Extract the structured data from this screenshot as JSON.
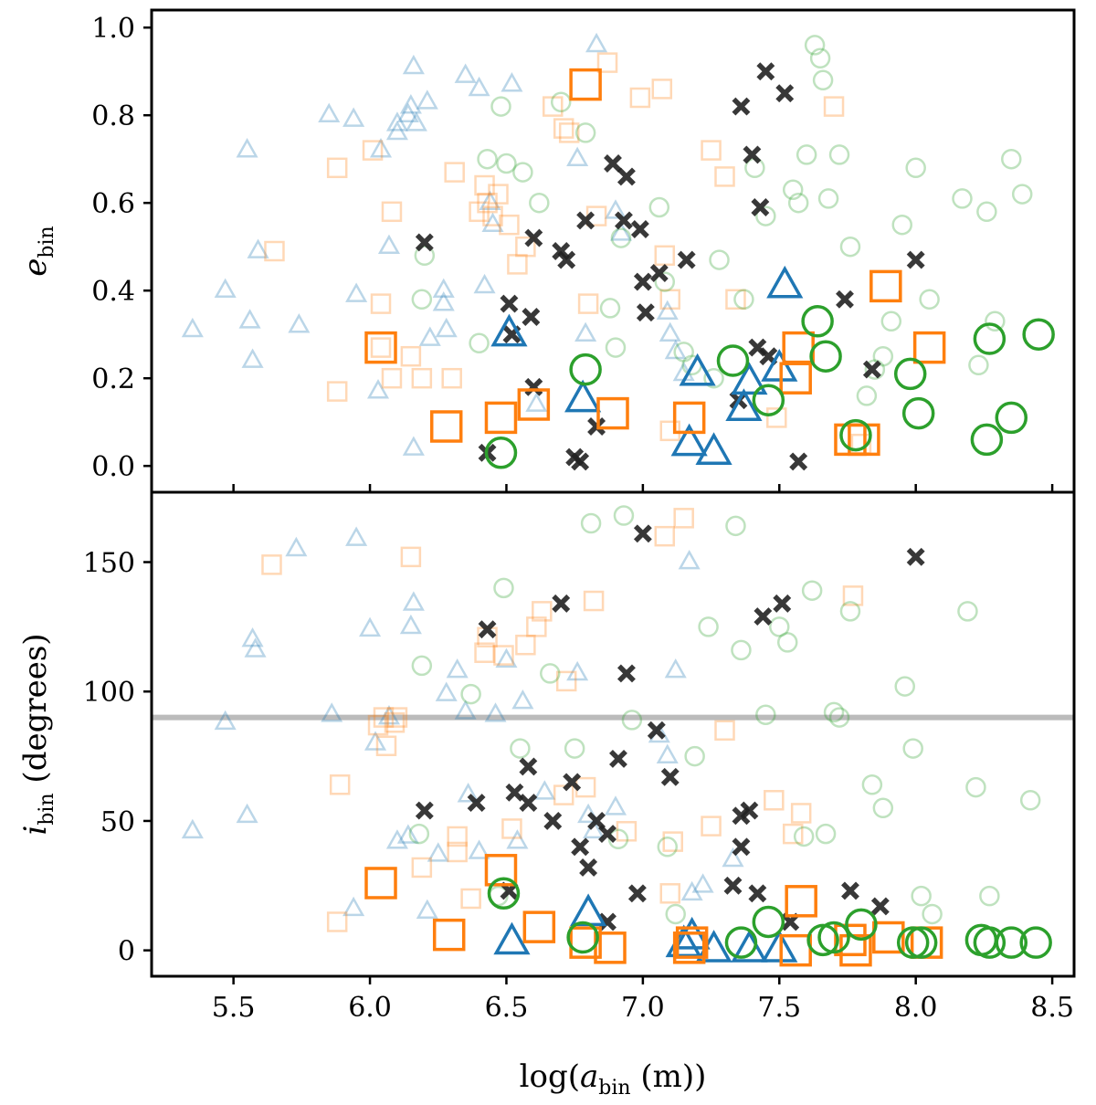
{
  "chart_data": [
    {
      "type": "scatter",
      "panel": "top",
      "xlim": [
        5.2,
        8.58
      ],
      "ylim": [
        -0.06,
        1.04
      ],
      "ylabel_main": "e",
      "ylabel_sub": "bin",
      "yticks": [
        "0.0",
        "0.2",
        "0.4",
        "0.6",
        "0.8",
        "1.0"
      ],
      "ytick_values": [
        0,
        0.2,
        0.4,
        0.6,
        0.8,
        1.0
      ],
      "grid": false,
      "legend": "none",
      "series": [
        {
          "marker": "triangle",
          "color": "#1f77b4",
          "style": "faint",
          "x": [
            5.35,
            5.47,
            5.56,
            5.57,
            5.55,
            5.59,
            5.74,
            5.85,
            5.94,
            5.95,
            6.03,
            6.04,
            6.07,
            6.1,
            6.1,
            6.14,
            6.15,
            6.16,
            6.16,
            6.17,
            6.21,
            6.22,
            6.27,
            6.27,
            6.28,
            6.35,
            6.4,
            6.42,
            6.44,
            6.45,
            6.52,
            6.61,
            6.76,
            6.79,
            6.83,
            6.9,
            6.92,
            7.09,
            7.1,
            7.12,
            7.15
          ],
          "y": [
            0.31,
            0.4,
            0.33,
            0.24,
            0.72,
            0.49,
            0.32,
            0.8,
            0.79,
            0.39,
            0.17,
            0.72,
            0.5,
            0.78,
            0.76,
            0.8,
            0.82,
            0.91,
            0.04,
            0.78,
            0.83,
            0.29,
            0.4,
            0.37,
            0.31,
            0.89,
            0.86,
            0.41,
            0.6,
            0.55,
            0.87,
            0.14,
            0.7,
            0.3,
            0.96,
            0.58,
            0.53,
            0.35,
            0.3,
            0.26,
            0.21
          ]
        },
        {
          "marker": "square",
          "color": "#ff7f0e",
          "style": "faint",
          "x": [
            5.65,
            5.88,
            5.88,
            6.01,
            6.04,
            6.04,
            6.08,
            6.08,
            6.15,
            6.19,
            6.31,
            6.3,
            6.4,
            6.42,
            6.43,
            6.45,
            6.47,
            6.51,
            6.54,
            6.57,
            6.67,
            6.71,
            6.73,
            6.8,
            6.83,
            6.87,
            6.99,
            7.07,
            7.08,
            7.1,
            7.1,
            7.25,
            7.3,
            7.34,
            7.49,
            7.7,
            7.8
          ],
          "y": [
            0.49,
            0.17,
            0.68,
            0.72,
            0.37,
            0.27,
            0.58,
            0.2,
            0.25,
            0.2,
            0.67,
            0.2,
            0.58,
            0.64,
            0.6,
            0.57,
            0.62,
            0.55,
            0.46,
            0.5,
            0.82,
            0.77,
            0.76,
            0.37,
            0.57,
            0.92,
            0.84,
            0.86,
            0.48,
            0.38,
            0.08,
            0.72,
            0.66,
            0.38,
            0.11,
            0.82,
            0.05
          ]
        },
        {
          "marker": "circle",
          "color": "#2ca02c",
          "style": "faint",
          "x": [
            6.19,
            6.2,
            6.4,
            6.43,
            6.48,
            6.5,
            6.56,
            6.62,
            6.7,
            6.79,
            6.88,
            6.9,
            6.92,
            7.06,
            7.08,
            7.15,
            7.18,
            7.26,
            7.28,
            7.37,
            7.41,
            7.45,
            7.55,
            7.57,
            7.6,
            7.63,
            7.65,
            7.66,
            7.68,
            7.72,
            7.76,
            7.82,
            7.85,
            7.88,
            7.91,
            7.95,
            8.0,
            8.05,
            8.17,
            8.23,
            8.26,
            8.29,
            8.35,
            8.39
          ],
          "y": [
            0.38,
            0.48,
            0.28,
            0.7,
            0.82,
            0.69,
            0.67,
            0.6,
            0.83,
            0.76,
            0.36,
            0.27,
            0.52,
            0.59,
            0.42,
            0.26,
            0.23,
            0.2,
            0.47,
            0.38,
            0.68,
            0.57,
            0.63,
            0.6,
            0.71,
            0.96,
            0.93,
            0.88,
            0.61,
            0.71,
            0.5,
            0.16,
            0.22,
            0.25,
            0.33,
            0.55,
            0.68,
            0.38,
            0.61,
            0.23,
            0.58,
            0.33,
            0.7,
            0.62
          ]
        },
        {
          "marker": "x",
          "color": "#222222",
          "style": "solid",
          "x": [
            6.2,
            6.43,
            6.51,
            6.52,
            6.59,
            6.6,
            6.6,
            6.7,
            6.72,
            6.75,
            6.77,
            6.79,
            6.83,
            6.89,
            6.93,
            6.94,
            6.99,
            7.0,
            7.01,
            7.06,
            7.16,
            7.35,
            7.36,
            7.4,
            7.42,
            7.43,
            7.45,
            7.46,
            7.52,
            7.57,
            7.74,
            7.84,
            8.0
          ],
          "y": [
            0.51,
            0.03,
            0.37,
            0.3,
            0.34,
            0.52,
            0.18,
            0.49,
            0.47,
            0.02,
            0.01,
            0.56,
            0.09,
            0.69,
            0.56,
            0.66,
            0.54,
            0.42,
            0.35,
            0.44,
            0.47,
            0.15,
            0.82,
            0.71,
            0.27,
            0.59,
            0.9,
            0.25,
            0.85,
            0.01,
            0.38,
            0.22,
            0.47
          ]
        },
        {
          "marker": "triangle",
          "color": "#1f77b4",
          "style": "bold",
          "x": [
            6.51,
            6.78,
            7.17,
            7.2,
            7.26,
            7.37,
            7.39,
            7.5,
            7.52
          ],
          "y": [
            0.3,
            0.15,
            0.05,
            0.21,
            0.03,
            0.13,
            0.19,
            0.22,
            0.41
          ]
        },
        {
          "marker": "square",
          "color": "#ff7f0e",
          "style": "bold",
          "x": [
            6.04,
            6.28,
            6.48,
            6.6,
            6.79,
            6.89,
            7.17,
            7.56,
            7.57,
            7.76,
            7.81,
            7.89,
            8.05
          ],
          "y": [
            0.27,
            0.09,
            0.11,
            0.14,
            0.87,
            0.12,
            0.11,
            0.2,
            0.27,
            0.06,
            0.06,
            0.41,
            0.27
          ],
          "size": "large"
        },
        {
          "marker": "circle",
          "color": "#2ca02c",
          "style": "bold",
          "x": [
            6.48,
            6.79,
            7.33,
            7.46,
            7.64,
            7.67,
            7.78,
            7.98,
            8.01,
            8.26,
            8.27,
            8.35,
            8.45
          ],
          "y": [
            0.03,
            0.22,
            0.24,
            0.15,
            0.33,
            0.25,
            0.07,
            0.21,
            0.12,
            0.06,
            0.29,
            0.11,
            0.3
          ]
        }
      ]
    },
    {
      "type": "scatter",
      "panel": "bottom",
      "xlim": [
        5.2,
        8.58
      ],
      "ylim": [
        -10,
        177
      ],
      "ylabel_main": "i",
      "ylabel_sub": "bin",
      "ylabel_rest": " (degrees)",
      "xlabel_prefix": "log(",
      "xlabel_main": "a",
      "xlabel_sub": "bin",
      "xlabel_suffix": " (m))",
      "yticks": [
        "0",
        "50",
        "100",
        "150"
      ],
      "ytick_values": [
        0,
        50,
        100,
        150
      ],
      "xticks": [
        "5.5",
        "6.0",
        "6.5",
        "7.0",
        "7.5",
        "8.0",
        "8.5"
      ],
      "xtick_values": [
        5.5,
        6.0,
        6.5,
        7.0,
        7.5,
        8.0,
        8.5
      ],
      "hline": 90,
      "grid": false,
      "legend": "none",
      "series": [
        {
          "marker": "triangle",
          "color": "#1f77b4",
          "style": "faint",
          "x": [
            5.35,
            5.47,
            5.55,
            5.57,
            5.58,
            5.73,
            5.86,
            5.94,
            5.95,
            6.0,
            6.02,
            6.07,
            6.1,
            6.14,
            6.15,
            6.16,
            6.21,
            6.25,
            6.28,
            6.32,
            6.35,
            6.36,
            6.4,
            6.46,
            6.5,
            6.54,
            6.56,
            6.64,
            6.76,
            6.8,
            6.82,
            6.9,
            7.06,
            7.09,
            7.12,
            7.17,
            7.18,
            7.22,
            7.33
          ],
          "y": [
            46,
            88,
            52,
            120,
            116,
            155,
            91,
            16,
            159,
            124,
            80,
            90,
            42,
            44,
            125,
            134,
            15,
            37,
            99,
            108,
            92,
            60,
            38,
            91,
            112,
            42,
            96,
            61,
            107,
            52,
            46,
            55,
            83,
            75,
            108,
            150,
            22,
            25,
            35
          ]
        },
        {
          "marker": "square",
          "color": "#ff7f0e",
          "style": "faint",
          "x": [
            5.64,
            5.88,
            5.89,
            6.03,
            6.05,
            6.06,
            6.09,
            6.1,
            6.15,
            6.19,
            6.32,
            6.32,
            6.37,
            6.42,
            6.43,
            6.49,
            6.52,
            6.57,
            6.61,
            6.63,
            6.71,
            6.72,
            6.79,
            6.82,
            6.94,
            7.08,
            7.1,
            7.11,
            7.15,
            7.25,
            7.3,
            7.48,
            7.55,
            7.58,
            7.77
          ],
          "y": [
            149,
            11,
            64,
            87,
            90,
            79,
            88,
            90,
            152,
            32,
            44,
            38,
            20,
            115,
            121,
            114,
            47,
            118,
            125,
            131,
            60,
            104,
            63,
            135,
            46,
            160,
            22,
            42,
            167,
            48,
            85,
            58,
            45,
            53,
            137
          ]
        },
        {
          "marker": "circle",
          "color": "#2ca02c",
          "style": "faint",
          "x": [
            6.18,
            6.19,
            6.37,
            6.47,
            6.49,
            6.55,
            6.66,
            6.75,
            6.81,
            6.91,
            6.93,
            6.96,
            7.09,
            7.12,
            7.19,
            7.24,
            7.34,
            7.36,
            7.45,
            7.5,
            7.53,
            7.59,
            7.62,
            7.67,
            7.7,
            7.72,
            7.76,
            7.84,
            7.88,
            7.96,
            7.99,
            8.02,
            8.06,
            8.19,
            8.22,
            8.27,
            8.42
          ],
          "y": [
            45,
            110,
            99,
            21,
            140,
            78,
            107,
            78,
            165,
            43,
            168,
            89,
            40,
            14,
            75,
            125,
            164,
            116,
            91,
            125,
            119,
            44,
            139,
            45,
            92,
            90,
            131,
            64,
            55,
            102,
            78,
            21,
            14,
            131,
            63,
            21,
            58
          ]
        },
        {
          "marker": "x",
          "color": "#222222",
          "style": "solid",
          "x": [
            6.2,
            6.39,
            6.43,
            6.51,
            6.53,
            6.58,
            6.58,
            6.67,
            6.7,
            6.74,
            6.77,
            6.8,
            6.83,
            6.87,
            6.87,
            6.91,
            6.94,
            6.98,
            7.0,
            7.05,
            7.1,
            7.33,
            7.36,
            7.36,
            7.39,
            7.42,
            7.44,
            7.51,
            7.54,
            7.76,
            7.87,
            8.0
          ],
          "y": [
            54,
            57,
            124,
            23,
            61,
            71,
            57,
            50,
            134,
            65,
            40,
            32,
            50,
            45,
            11,
            74,
            107,
            22,
            161,
            85,
            67,
            25,
            52,
            40,
            54,
            22,
            129,
            134,
            11,
            23,
            17,
            152
          ]
        },
        {
          "marker": "triangle",
          "color": "#1f77b4",
          "style": "bold",
          "x": [
            6.52,
            6.8,
            7.15,
            7.18,
            7.26,
            7.39,
            7.5
          ],
          "y": [
            3,
            14,
            2,
            5,
            0,
            0,
            0
          ]
        },
        {
          "marker": "square",
          "color": "#ff7f0e",
          "style": "bold",
          "x": [
            6.04,
            6.29,
            6.48,
            6.62,
            6.79,
            6.88,
            7.17,
            7.18,
            7.56,
            7.58,
            7.76,
            7.78,
            7.9,
            8.04
          ],
          "y": [
            26,
            6,
            31,
            9,
            3,
            1,
            1,
            3,
            0,
            19,
            4,
            0,
            5,
            3
          ],
          "size": "large"
        },
        {
          "marker": "circle",
          "color": "#2ca02c",
          "style": "bold",
          "x": [
            6.49,
            6.78,
            7.36,
            7.46,
            7.66,
            7.7,
            7.8,
            7.99,
            8.02,
            8.24,
            8.27,
            8.35,
            8.44
          ],
          "y": [
            22,
            5,
            3,
            11,
            4,
            5,
            10,
            3,
            3,
            4,
            3,
            3,
            3
          ]
        }
      ]
    }
  ]
}
